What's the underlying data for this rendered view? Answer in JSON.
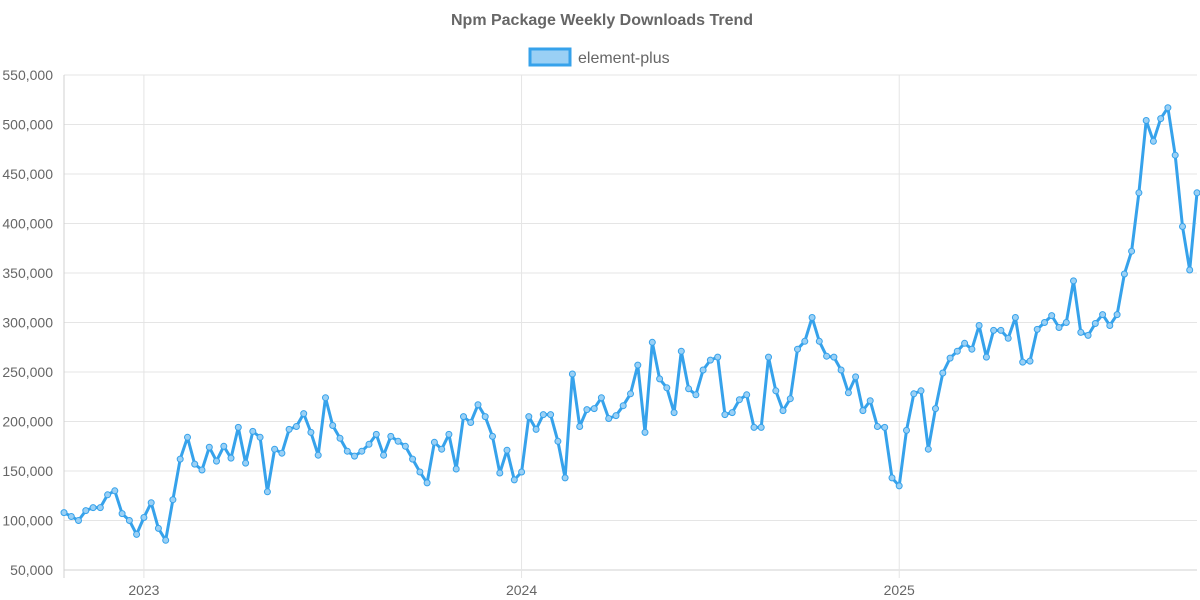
{
  "chart_data": {
    "type": "line",
    "title": "Npm Package Weekly Downloads Trend",
    "xlabel": "",
    "ylabel": "",
    "ylim": [
      50000,
      550000
    ],
    "y_ticks": [
      50000,
      100000,
      150000,
      200000,
      250000,
      300000,
      350000,
      400000,
      450000,
      500000,
      550000
    ],
    "y_tick_labels": [
      "50,000",
      "100,000",
      "150,000",
      "200,000",
      "250,000",
      "300,000",
      "350,000",
      "400,000",
      "450,000",
      "500,000",
      "550,000"
    ],
    "x_ticks": [
      11,
      63,
      115
    ],
    "x_tick_labels": [
      "2023",
      "2024",
      "2025"
    ],
    "x_range": [
      0,
      156
    ],
    "grid": true,
    "legend_position": "top-center",
    "colors": {
      "line": "#36a2eb",
      "fill": "#9ad0f5",
      "grid": "#e5e5e5",
      "text": "#666666"
    },
    "series": [
      {
        "name": "element-plus",
        "values": [
          108000,
          104000,
          100000,
          110000,
          113000,
          113000,
          126000,
          130000,
          107000,
          100000,
          86000,
          103000,
          118000,
          92000,
          80000,
          121000,
          162000,
          184000,
          157000,
          151000,
          174000,
          160000,
          175000,
          163000,
          194000,
          158000,
          190000,
          184000,
          129000,
          172000,
          168000,
          192000,
          195000,
          208000,
          189000,
          166000,
          224000,
          196000,
          183000,
          170000,
          165000,
          170000,
          177000,
          187000,
          166000,
          185000,
          180000,
          175000,
          162000,
          149000,
          138000,
          179000,
          172000,
          187000,
          152000,
          205000,
          199000,
          217000,
          205000,
          185000,
          148000,
          171000,
          141000,
          149000,
          205000,
          192000,
          207000,
          207000,
          180000,
          143000,
          248000,
          195000,
          212000,
          213000,
          224000,
          203000,
          206000,
          216000,
          228000,
          257000,
          189000,
          280000,
          243000,
          234000,
          209000,
          271000,
          233000,
          227000,
          252000,
          262000,
          265000,
          207000,
          209000,
          222000,
          227000,
          194000,
          194000,
          265000,
          231000,
          211000,
          223000,
          273000,
          281000,
          305000,
          281000,
          266000,
          265000,
          252000,
          229000,
          245000,
          211000,
          221000,
          195000,
          194000,
          143000,
          135000,
          191000,
          228000,
          231000,
          172000,
          213000,
          249000,
          264000,
          271000,
          279000,
          273000,
          297000,
          265000,
          292000,
          292000,
          284000,
          305000,
          260000,
          261000,
          293000,
          300000,
          307000,
          295000,
          300000,
          342000,
          290000,
          287000,
          299000,
          308000,
          297000,
          308000,
          349000,
          372000,
          431000,
          504000,
          483000,
          506000,
          517000,
          469000,
          397000,
          353000,
          431000
        ]
      }
    ]
  }
}
